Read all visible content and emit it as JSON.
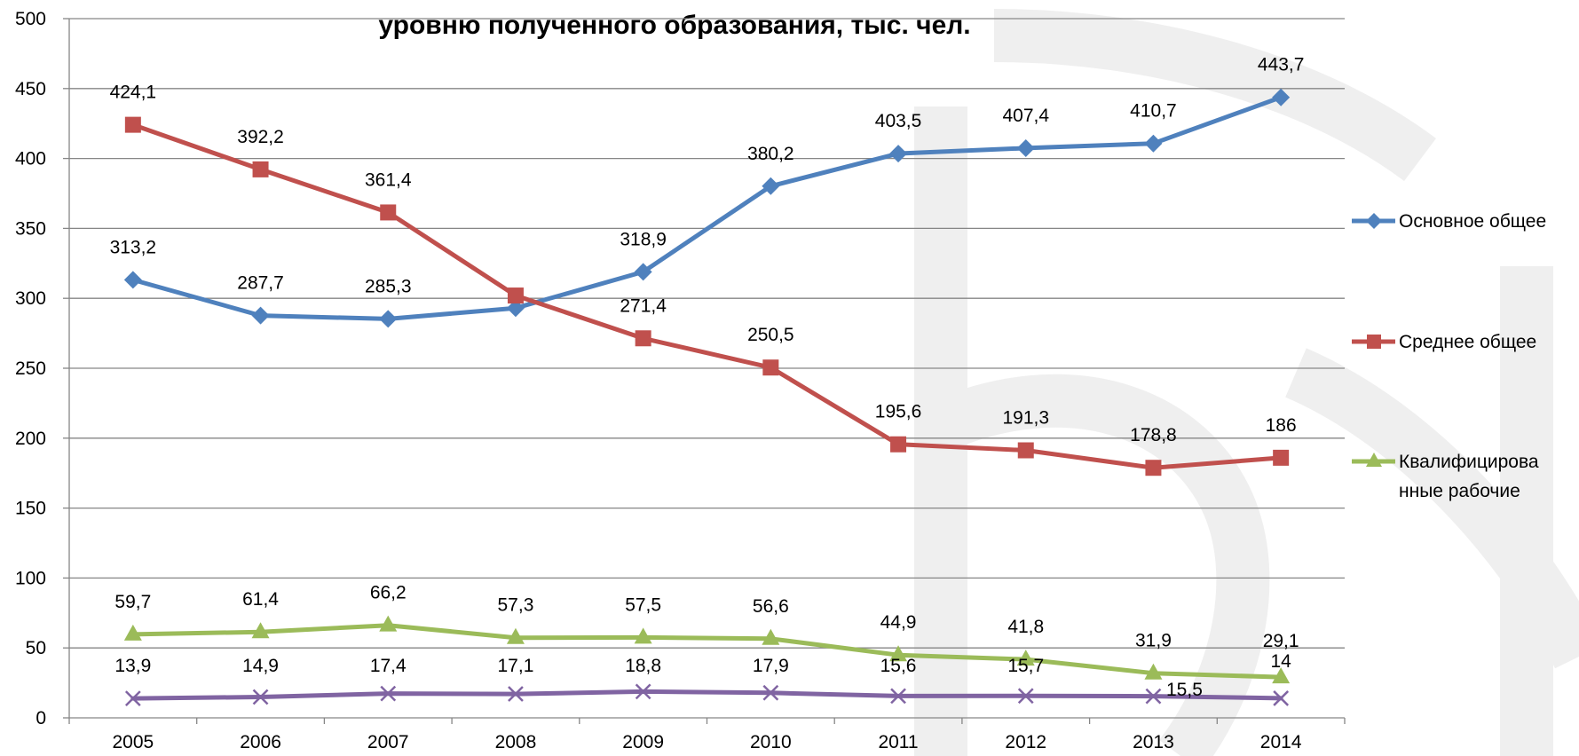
{
  "chart_data": {
    "type": "line",
    "title": "уровню полученного образования, тыс. чел.",
    "categories": [
      "2005",
      "2006",
      "2007",
      "2008",
      "2009",
      "2010",
      "2011",
      "2012",
      "2013",
      "2014"
    ],
    "ylim": [
      0,
      500
    ],
    "yticks": [
      "0",
      "50",
      "100",
      "150",
      "200",
      "250",
      "300",
      "350",
      "400",
      "450",
      "500"
    ],
    "grid": true,
    "legend_position": "right",
    "series": [
      {
        "name": "Основное общее",
        "color": "#4f81bd",
        "marker": "diamond",
        "values": [
          313.2,
          287.7,
          285.3,
          293,
          318.9,
          380.2,
          403.5,
          407.4,
          410.7,
          443.7
        ],
        "labels": [
          "313,2",
          "287,7",
          "285,3",
          "",
          "318,9",
          "380,2",
          "403,5",
          "407,4",
          "410,7",
          "443,7"
        ]
      },
      {
        "name": "Среднее общее",
        "color": "#c0504d",
        "marker": "square",
        "values": [
          424.1,
          392.2,
          361.4,
          302,
          271.4,
          250.5,
          195.6,
          191.3,
          178.8,
          186
        ],
        "labels": [
          "424,1",
          "392,2",
          "361,4",
          "",
          "271,4",
          "250,5",
          "195,6",
          "191,3",
          "178,8",
          "186"
        ]
      },
      {
        "name": "Квалифицированные рабочие",
        "legend_lines": [
          "Квалифицирова",
          "нные рабочие"
        ],
        "color": "#9bbb59",
        "marker": "triangle",
        "values": [
          59.7,
          61.4,
          66.2,
          57.3,
          57.5,
          56.6,
          44.9,
          41.8,
          31.9,
          29.1
        ],
        "labels": [
          "59,7",
          "61,4",
          "66,2",
          "57,3",
          "57,5",
          "56,6",
          "44,9",
          "41,8",
          "31,9",
          "29,1"
        ]
      },
      {
        "color": "#8064a2",
        "marker": "x",
        "values": [
          13.9,
          14.9,
          17.4,
          17.1,
          18.8,
          17.9,
          15.6,
          15.7,
          15.5,
          14
        ],
        "labels": [
          "13,9",
          "14,9",
          "17,4",
          "17,1",
          "18,8",
          "17,9",
          "15,6",
          "15,7",
          "15,5",
          "14"
        ]
      }
    ]
  }
}
